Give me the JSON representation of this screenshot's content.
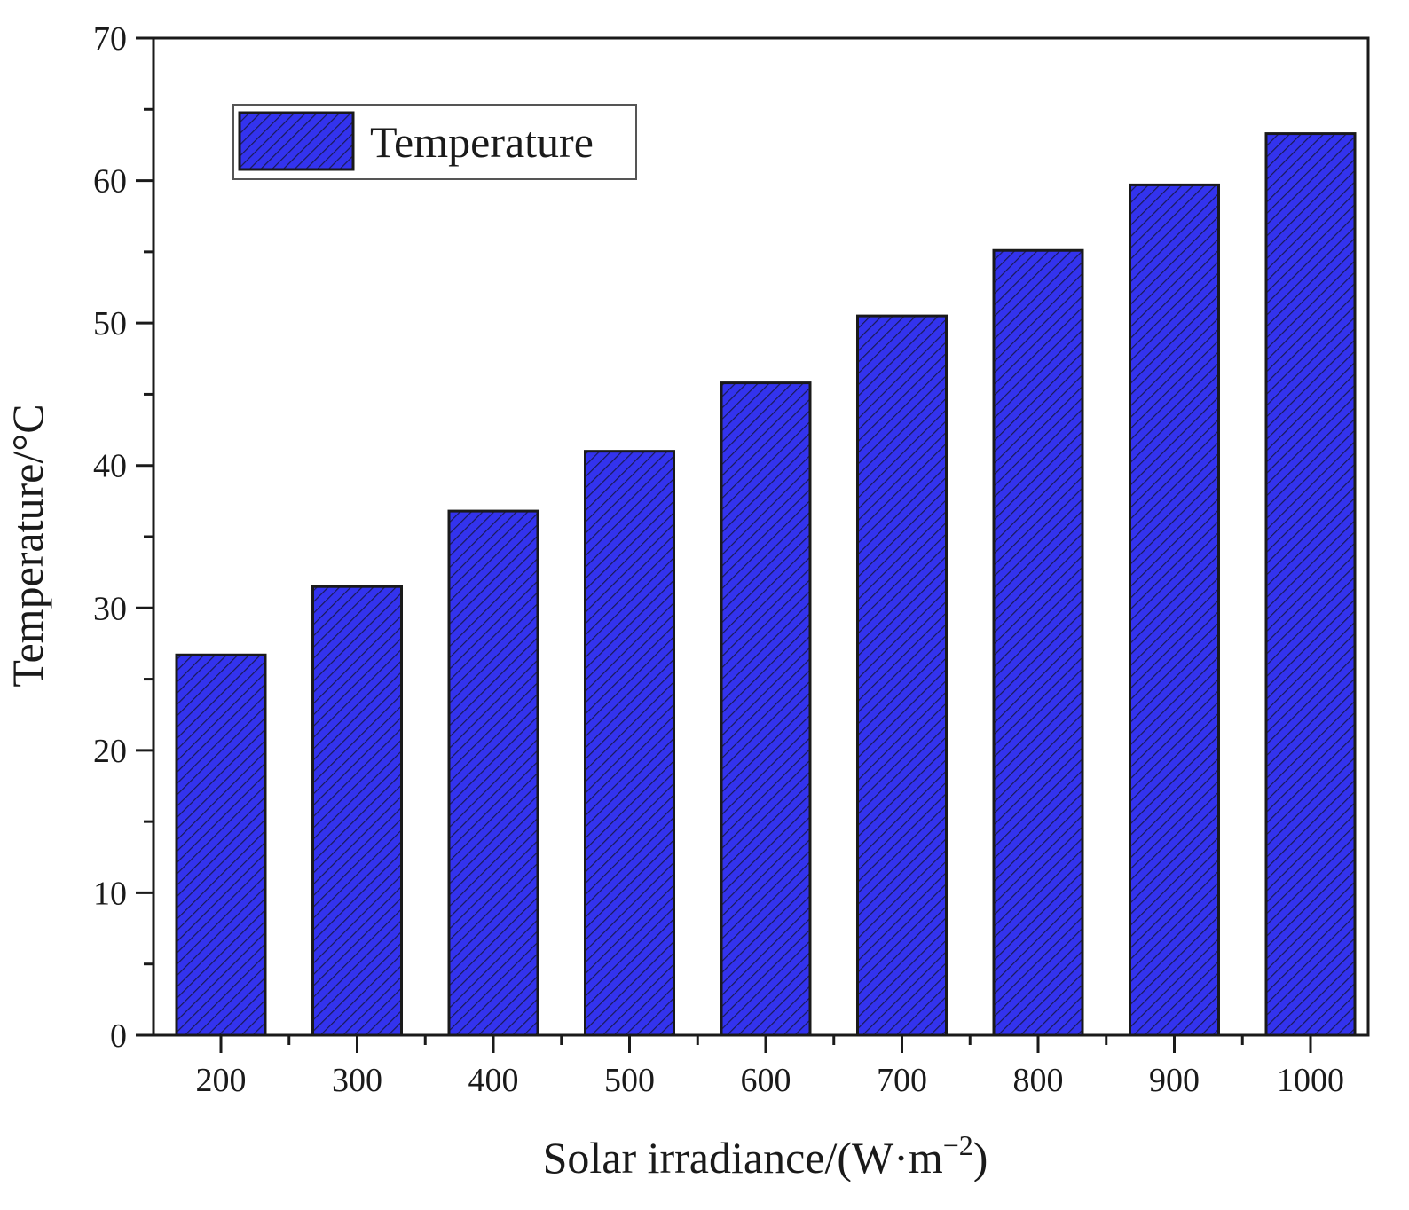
{
  "chart_data": {
    "type": "bar",
    "title": "",
    "xlabel": "Solar irradiance/(W·m−2)",
    "xlabel_parts": {
      "main": "Solar irradiance/(W·m",
      "sup": "−2",
      "close": ")"
    },
    "ylabel": "Temperature/°C",
    "categories": [
      "200",
      "300",
      "400",
      "500",
      "600",
      "700",
      "800",
      "900",
      "1000"
    ],
    "series": [
      {
        "name": "Temperature",
        "color": "#3333ee",
        "pattern": "diagonal-hatch",
        "values": [
          26.7,
          31.5,
          36.8,
          41.0,
          45.8,
          50.5,
          55.1,
          59.7,
          63.3
        ]
      }
    ],
    "ylim": [
      0,
      70
    ],
    "yticks": [
      "0",
      "10",
      "20",
      "30",
      "40",
      "50",
      "60",
      "70"
    ],
    "legend": {
      "position": "top-left",
      "entries": [
        "Temperature"
      ]
    },
    "grid": false
  }
}
